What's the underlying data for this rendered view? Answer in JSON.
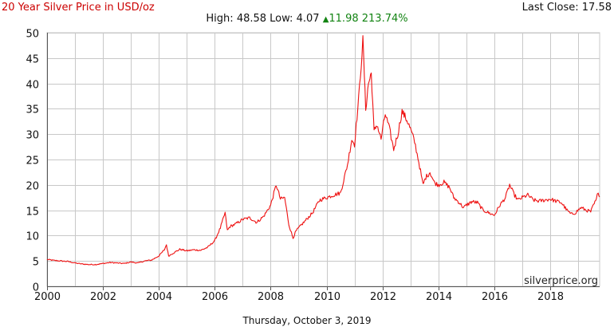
{
  "header": {
    "title": "20 Year Silver Price in USD/oz",
    "last_close_label": "Last Close:",
    "last_close_value": "17.58",
    "high_label": "High:",
    "high_value": "48.58",
    "low_label": "Low:",
    "low_value": "4.07",
    "change_value": "11.98",
    "change_pct": "213.74%"
  },
  "footer": {
    "date": "Thursday, October 3, 2019",
    "watermark": "silverprice.org"
  },
  "colors": {
    "line": "#ee1111",
    "title": "#cc0000",
    "positive": "#128312",
    "grid": "#c8c8c8",
    "axis": "#555555"
  },
  "icons": {
    "change_arrow": "up-triangle-icon"
  },
  "chart_data": {
    "type": "line",
    "title": "20 Year Silver Price in USD/oz",
    "xlabel": "",
    "ylabel": "",
    "xlim": [
      2000,
      2019.77
    ],
    "ylim": [
      0,
      50
    ],
    "x_ticks": [
      2000,
      2002,
      2004,
      2006,
      2008,
      2010,
      2012,
      2014,
      2016,
      2018
    ],
    "y_ticks": [
      0,
      5,
      10,
      15,
      20,
      25,
      30,
      35,
      40,
      45,
      50
    ],
    "grid": true,
    "series": [
      {
        "x": [
          2000.0,
          2000.25,
          2000.5,
          2000.75,
          2001.0,
          2001.25,
          2001.5,
          2001.75,
          2002.0,
          2002.25,
          2002.5,
          2002.75,
          2003.0,
          2003.25,
          2003.5,
          2003.75,
          2004.0,
          2004.2,
          2004.27,
          2004.35,
          2004.5,
          2004.75,
          2005.0,
          2005.25,
          2005.5,
          2005.75,
          2006.0,
          2006.2,
          2006.37,
          2006.45,
          2006.55,
          2006.75,
          2007.0,
          2007.25,
          2007.5,
          2007.75,
          2008.0,
          2008.2,
          2008.35,
          2008.5,
          2008.65,
          2008.8,
          2008.9,
          2009.0,
          2009.25,
          2009.5,
          2009.75,
          2010.0,
          2010.25,
          2010.5,
          2010.75,
          2010.9,
          2011.0,
          2011.15,
          2011.3,
          2011.4,
          2011.5,
          2011.6,
          2011.7,
          2011.8,
          2011.95,
          2012.1,
          2012.25,
          2012.4,
          2012.55,
          2012.7,
          2012.8,
          2012.9,
          2013.0,
          2013.15,
          2013.3,
          2013.45,
          2013.55,
          2013.7,
          2013.85,
          2014.0,
          2014.2,
          2014.4,
          2014.55,
          2014.75,
          2014.9,
          2015.0,
          2015.2,
          2015.4,
          2015.6,
          2015.8,
          2016.0,
          2016.2,
          2016.4,
          2016.55,
          2016.7,
          2016.85,
          2017.0,
          2017.2,
          2017.4,
          2017.6,
          2017.8,
          2018.0,
          2018.2,
          2018.4,
          2018.6,
          2018.75,
          2018.9,
          2019.1,
          2019.3,
          2019.45,
          2019.55,
          2019.65,
          2019.72,
          2019.77
        ],
        "y": [
          5.3,
          5.1,
          5.0,
          4.9,
          4.6,
          4.4,
          4.3,
          4.3,
          4.5,
          4.7,
          4.6,
          4.5,
          4.8,
          4.6,
          5.0,
          5.2,
          6.0,
          7.2,
          8.2,
          6.0,
          6.5,
          7.3,
          7.0,
          7.2,
          7.1,
          7.7,
          9.0,
          11.5,
          14.5,
          11.0,
          11.8,
          12.3,
          13.2,
          13.5,
          12.6,
          13.8,
          16.0,
          20.0,
          17.2,
          17.5,
          12.2,
          9.5,
          10.8,
          11.5,
          13.0,
          14.5,
          17.0,
          17.5,
          18.0,
          18.4,
          24.0,
          29.0,
          28.0,
          37.0,
          48.5,
          35.0,
          40.0,
          42.0,
          30.5,
          32.0,
          29.0,
          34.0,
          31.0,
          27.0,
          30.0,
          34.5,
          33.5,
          32.5,
          31.0,
          28.5,
          24.5,
          20.0,
          21.5,
          22.5,
          20.5,
          20.0,
          20.5,
          19.5,
          17.5,
          16.5,
          15.5,
          16.0,
          16.7,
          16.5,
          15.0,
          14.5,
          14.0,
          16.0,
          17.5,
          20.0,
          18.2,
          17.0,
          17.5,
          18.0,
          17.0,
          16.8,
          17.0,
          17.2,
          16.8,
          16.5,
          15.0,
          14.2,
          14.5,
          15.5,
          15.0,
          14.7,
          16.0,
          17.0,
          18.8,
          17.6
        ]
      }
    ]
  }
}
